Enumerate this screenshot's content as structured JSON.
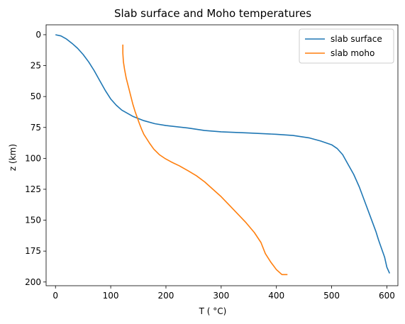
{
  "chart_data": {
    "type": "line",
    "title": "Slab surface and Moho temperatures",
    "xlabel": "T ( °C)",
    "ylabel": "z (km)",
    "xlim": [
      -17,
      620
    ],
    "ylim": [
      203,
      -8
    ],
    "y_inverted": true,
    "xticks": [
      0,
      100,
      200,
      300,
      400,
      500,
      600
    ],
    "yticks": [
      0,
      25,
      50,
      75,
      100,
      125,
      150,
      175,
      200
    ],
    "grid": false,
    "legend_position": "upper right",
    "series": [
      {
        "name": "slab surface",
        "color": "#1f77b4",
        "points": [
          [
            0,
            0
          ],
          [
            10,
            1
          ],
          [
            20,
            3.5
          ],
          [
            30,
            7
          ],
          [
            40,
            11
          ],
          [
            50,
            16
          ],
          [
            60,
            22
          ],
          [
            70,
            29
          ],
          [
            80,
            37
          ],
          [
            90,
            45
          ],
          [
            100,
            52
          ],
          [
            110,
            57
          ],
          [
            120,
            61
          ],
          [
            140,
            66
          ],
          [
            160,
            69.5
          ],
          [
            180,
            72
          ],
          [
            200,
            73.5
          ],
          [
            240,
            75.5
          ],
          [
            270,
            77.5
          ],
          [
            300,
            78.5
          ],
          [
            350,
            79.5
          ],
          [
            400,
            80.5
          ],
          [
            430,
            81.5
          ],
          [
            460,
            83.5
          ],
          [
            480,
            86
          ],
          [
            500,
            89
          ],
          [
            510,
            92
          ],
          [
            520,
            97
          ],
          [
            530,
            105
          ],
          [
            540,
            113
          ],
          [
            550,
            123
          ],
          [
            560,
            135
          ],
          [
            570,
            147
          ],
          [
            580,
            159
          ],
          [
            585,
            166
          ],
          [
            588,
            170
          ],
          [
            596,
            180
          ],
          [
            600,
            188
          ],
          [
            605,
            193
          ]
        ]
      },
      {
        "name": "slab moho",
        "color": "#ff7f0e",
        "points": [
          [
            122,
            8
          ],
          [
            122,
            15
          ],
          [
            123,
            22
          ],
          [
            125,
            28
          ],
          [
            128,
            35
          ],
          [
            132,
            42
          ],
          [
            136,
            49
          ],
          [
            140,
            56
          ],
          [
            144,
            62
          ],
          [
            148,
            67
          ],
          [
            152,
            72
          ],
          [
            156,
            76.5
          ],
          [
            160,
            80.5
          ],
          [
            165,
            84
          ],
          [
            170,
            87.5
          ],
          [
            178,
            92.5
          ],
          [
            188,
            97
          ],
          [
            198,
            100
          ],
          [
            210,
            103
          ],
          [
            224,
            106
          ],
          [
            240,
            110
          ],
          [
            255,
            114
          ],
          [
            270,
            119
          ],
          [
            285,
            125
          ],
          [
            300,
            131
          ],
          [
            315,
            138
          ],
          [
            330,
            145
          ],
          [
            345,
            152
          ],
          [
            360,
            160
          ],
          [
            372,
            168
          ],
          [
            380,
            177
          ],
          [
            390,
            184
          ],
          [
            400,
            190
          ],
          [
            410,
            194
          ],
          [
            420,
            194
          ]
        ]
      }
    ]
  }
}
